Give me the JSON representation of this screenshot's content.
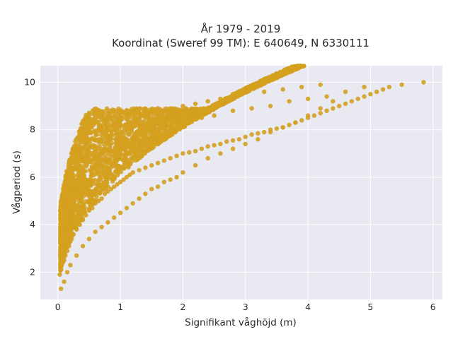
{
  "chart_data": {
    "type": "scatter",
    "title_lines": [
      "År 1979 - 2019",
      "Koordinat (Sweref 99 TM): E 640649, N 6330111"
    ],
    "xlabel": "Signifikant våghöjd (m)",
    "ylabel": "Vågperiod (s)",
    "xlim": [
      -0.28,
      6.15
    ],
    "ylim": [
      0.85,
      10.7
    ],
    "xticks": [
      0,
      1,
      2,
      3,
      4,
      5,
      6
    ],
    "yticks": [
      2,
      4,
      6,
      8,
      10
    ],
    "grid": true,
    "legend": "none",
    "colors": {
      "points": "#d4a01f",
      "plot_background": "#e9e9f1",
      "grid": "#ffffff"
    },
    "series": [
      {
        "x": [
          0.03,
          0.05,
          0.08,
          0.1,
          0.12,
          0.15,
          0.18,
          0.2,
          0.22,
          0.25,
          0.3,
          0.35,
          0.4,
          0.45,
          0.5,
          0.55,
          0.6,
          0.65,
          0.7,
          0.75,
          0.8,
          0.85,
          0.9,
          0.95,
          1.0,
          1.05,
          1.1,
          1.15,
          1.2,
          1.3,
          1.4,
          1.5,
          1.6,
          1.7,
          1.8,
          1.9,
          2.0,
          2.1,
          2.2,
          2.3,
          2.4,
          2.5,
          2.6,
          2.7,
          2.8,
          2.9,
          3.0,
          3.1,
          3.2,
          3.3,
          3.4,
          3.5,
          3.6,
          3.7,
          3.8,
          3.9,
          4.0,
          4.1,
          4.2,
          4.3,
          4.4,
          4.5,
          4.6,
          4.7,
          4.8,
          4.9,
          5.0,
          5.1,
          5.2,
          5.3,
          5.5,
          5.85,
          0.05,
          0.1,
          0.15,
          0.2,
          0.3,
          0.4,
          0.5,
          0.6,
          0.7,
          0.8,
          0.9,
          1.0,
          1.1,
          1.2,
          1.3,
          1.4,
          1.5,
          1.6,
          1.7,
          1.8,
          1.9,
          2.0,
          2.2,
          2.4,
          2.6,
          2.8,
          3.0,
          3.2,
          3.4,
          3.6,
          3.8,
          4.0,
          4.2,
          4.4,
          0.05,
          0.1,
          0.15,
          0.2,
          0.25,
          0.3,
          0.4,
          0.5,
          0.6,
          0.7,
          0.8,
          0.9,
          1.0,
          1.2,
          1.4,
          1.6,
          1.8,
          2.0,
          2.2,
          2.4,
          2.6,
          2.8,
          3.0,
          3.3,
          3.6,
          3.9,
          4.2,
          0.08,
          0.12,
          0.18,
          0.25,
          0.35,
          0.5,
          0.65,
          0.8,
          0.95,
          1.1,
          1.25,
          1.4,
          1.55,
          1.7,
          1.85,
          2.0,
          2.3,
          2.5,
          2.8,
          3.1,
          3.4,
          3.7,
          4.0,
          4.3,
          4.6,
          4.9
        ],
        "y": [
          1.9,
          2.1,
          2.4,
          2.5,
          2.7,
          2.9,
          3.1,
          3.3,
          3.4,
          3.6,
          3.8,
          4.0,
          4.2,
          4.4,
          4.6,
          4.7,
          4.9,
          5.0,
          5.1,
          5.3,
          5.4,
          5.5,
          5.6,
          5.7,
          5.8,
          5.9,
          6.0,
          6.1,
          6.2,
          6.3,
          6.4,
          6.5,
          6.6,
          6.7,
          6.8,
          6.9,
          7.0,
          7.05,
          7.1,
          7.2,
          7.3,
          7.35,
          7.4,
          7.5,
          7.55,
          7.6,
          7.7,
          7.8,
          7.85,
          7.9,
          8.0,
          8.05,
          8.1,
          8.2,
          8.3,
          8.4,
          8.5,
          8.6,
          8.7,
          8.8,
          8.9,
          9.0,
          9.1,
          9.2,
          9.3,
          9.4,
          9.5,
          9.6,
          9.7,
          9.8,
          9.9,
          10.0,
          1.3,
          1.6,
          2.0,
          2.3,
          2.7,
          3.1,
          3.4,
          3.7,
          3.9,
          4.1,
          4.3,
          4.5,
          4.7,
          4.9,
          5.1,
          5.3,
          5.5,
          5.6,
          5.8,
          5.9,
          6.0,
          6.2,
          6.5,
          6.8,
          7.0,
          7.2,
          7.4,
          7.6,
          7.9,
          8.1,
          8.3,
          8.6,
          8.9,
          9.2,
          3.0,
          3.6,
          4.2,
          4.8,
          5.2,
          5.6,
          6.2,
          6.7,
          7.2,
          7.6,
          8.0,
          8.3,
          8.5,
          8.7,
          8.8,
          8.9,
          8.9,
          9.0,
          9.1,
          9.2,
          9.3,
          9.5,
          9.6,
          9.6,
          9.7,
          9.8,
          9.9,
          2.5,
          3.0,
          3.5,
          4.0,
          4.6,
          5.2,
          5.8,
          6.4,
          6.9,
          7.3,
          7.6,
          7.9,
          8.1,
          8.2,
          8.3,
          8.4,
          8.5,
          8.6,
          8.8,
          8.9,
          9.0,
          9.2,
          9.3,
          9.4,
          9.6,
          9.8
        ]
      }
    ]
  }
}
